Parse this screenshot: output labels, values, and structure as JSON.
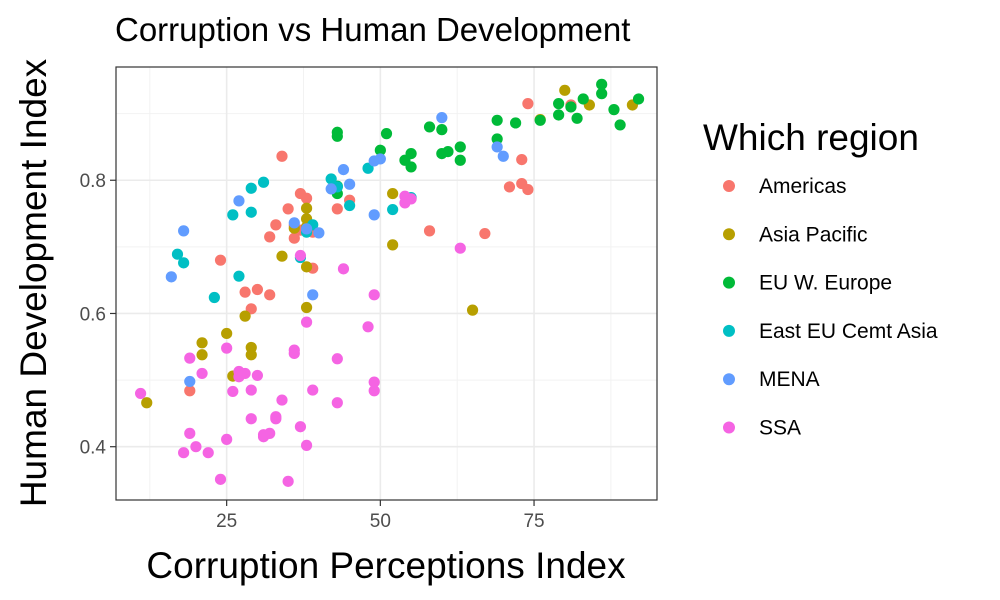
{
  "chart_data": {
    "type": "scatter",
    "title": "Corruption vs Human Development",
    "xlabel": "Corruption Perceptions Index",
    "ylabel": "Human Development Index",
    "xlim": [
      7,
      95
    ],
    "ylim": [
      0.32,
      0.97
    ],
    "x_ticks": [
      25,
      50,
      75
    ],
    "y_ticks": [
      0.4,
      0.6,
      0.8
    ],
    "y_tick_labels": [
      "0.4",
      "0.6",
      "0.8"
    ],
    "grid": true,
    "legend": {
      "title": "Which region",
      "placement": "right"
    },
    "series": [
      {
        "name": "Americas",
        "color": "#F8766D",
        "points": [
          [
            34,
            0.836
          ],
          [
            29,
            0.607
          ],
          [
            30,
            0.636
          ],
          [
            28,
            0.632
          ],
          [
            32,
            0.628
          ],
          [
            32,
            0.715
          ],
          [
            33,
            0.733
          ],
          [
            35,
            0.757
          ],
          [
            36,
            0.713
          ],
          [
            36,
            0.732
          ],
          [
            37,
            0.78
          ],
          [
            38,
            0.773
          ],
          [
            37,
            0.725
          ],
          [
            39,
            0.668
          ],
          [
            39,
            0.722
          ],
          [
            43,
            0.757
          ],
          [
            45,
            0.77
          ],
          [
            24,
            0.68
          ],
          [
            19,
            0.484
          ],
          [
            58,
            0.724
          ],
          [
            67,
            0.72
          ],
          [
            71,
            0.79
          ],
          [
            73,
            0.795
          ],
          [
            74,
            0.786
          ],
          [
            73,
            0.831
          ],
          [
            74,
            0.915
          ],
          [
            81,
            0.913
          ]
        ]
      },
      {
        "name": "Asia Pacific",
        "color": "#B79F00",
        "points": [
          [
            12,
            0.466
          ],
          [
            21,
            0.556
          ],
          [
            21,
            0.538
          ],
          [
            25,
            0.57
          ],
          [
            26,
            0.506
          ],
          [
            28,
            0.596
          ],
          [
            29,
            0.549
          ],
          [
            29,
            0.538
          ],
          [
            34,
            0.686
          ],
          [
            36,
            0.728
          ],
          [
            38,
            0.758
          ],
          [
            38,
            0.742
          ],
          [
            38,
            0.73
          ],
          [
            38,
            0.67
          ],
          [
            38,
            0.609
          ],
          [
            52,
            0.78
          ],
          [
            52,
            0.703
          ],
          [
            65,
            0.605
          ],
          [
            76,
            0.891
          ],
          [
            80,
            0.935
          ],
          [
            84,
            0.913
          ],
          [
            91,
            0.913
          ]
        ]
      },
      {
        "name": "EU W. Europe",
        "color": "#00BA38",
        "points": [
          [
            43,
            0.791
          ],
          [
            43,
            0.78
          ],
          [
            43,
            0.866
          ],
          [
            43,
            0.872
          ],
          [
            50,
            0.845
          ],
          [
            51,
            0.87
          ],
          [
            54,
            0.83
          ],
          [
            55,
            0.82
          ],
          [
            55,
            0.84
          ],
          [
            58,
            0.88
          ],
          [
            60,
            0.876
          ],
          [
            60,
            0.84
          ],
          [
            61,
            0.843
          ],
          [
            63,
            0.85
          ],
          [
            63,
            0.83
          ],
          [
            69,
            0.89
          ],
          [
            69,
            0.862
          ],
          [
            72,
            0.886
          ],
          [
            76,
            0.89
          ],
          [
            79,
            0.915
          ],
          [
            79,
            0.898
          ],
          [
            81,
            0.91
          ],
          [
            82,
            0.893
          ],
          [
            83,
            0.922
          ],
          [
            86,
            0.944
          ],
          [
            86,
            0.93
          ],
          [
            88,
            0.906
          ],
          [
            89,
            0.883
          ],
          [
            92,
            0.922
          ]
        ]
      },
      {
        "name": "East EU Cemt Asia",
        "color": "#00BFC4",
        "points": [
          [
            17,
            0.689
          ],
          [
            18,
            0.676
          ],
          [
            23,
            0.624
          ],
          [
            26,
            0.748
          ],
          [
            27,
            0.656
          ],
          [
            29,
            0.752
          ],
          [
            29,
            0.788
          ],
          [
            31,
            0.797
          ],
          [
            37,
            0.684
          ],
          [
            38,
            0.722
          ],
          [
            39,
            0.733
          ],
          [
            42,
            0.802
          ],
          [
            43,
            0.79
          ],
          [
            45,
            0.762
          ],
          [
            48,
            0.818
          ],
          [
            52,
            0.756
          ],
          [
            55,
            0.774
          ]
        ]
      },
      {
        "name": "MENA",
        "color": "#619CFF",
        "points": [
          [
            16,
            0.655
          ],
          [
            18,
            0.724
          ],
          [
            19,
            0.498
          ],
          [
            27,
            0.769
          ],
          [
            36,
            0.736
          ],
          [
            38,
            0.727
          ],
          [
            39,
            0.628
          ],
          [
            40,
            0.721
          ],
          [
            42,
            0.787
          ],
          [
            44,
            0.816
          ],
          [
            45,
            0.794
          ],
          [
            49,
            0.748
          ],
          [
            49,
            0.829
          ],
          [
            50,
            0.832
          ],
          [
            60,
            0.894
          ],
          [
            69,
            0.85
          ],
          [
            70,
            0.836
          ]
        ]
      },
      {
        "name": "SSA",
        "color": "#F564E3",
        "points": [
          [
            11,
            0.48
          ],
          [
            18,
            0.391
          ],
          [
            19,
            0.42
          ],
          [
            19,
            0.533
          ],
          [
            20,
            0.4
          ],
          [
            21,
            0.51
          ],
          [
            22,
            0.391
          ],
          [
            24,
            0.351
          ],
          [
            25,
            0.411
          ],
          [
            25,
            0.548
          ],
          [
            26,
            0.483
          ],
          [
            27,
            0.505
          ],
          [
            27,
            0.513
          ],
          [
            28,
            0.51
          ],
          [
            29,
            0.442
          ],
          [
            29,
            0.485
          ],
          [
            30,
            0.507
          ],
          [
            31,
            0.415
          ],
          [
            31,
            0.418
          ],
          [
            32,
            0.42
          ],
          [
            33,
            0.442
          ],
          [
            33,
            0.445
          ],
          [
            34,
            0.47
          ],
          [
            35,
            0.348
          ],
          [
            36,
            0.54
          ],
          [
            36,
            0.545
          ],
          [
            37,
            0.43
          ],
          [
            37,
            0.687
          ],
          [
            38,
            0.587
          ],
          [
            38,
            0.402
          ],
          [
            39,
            0.485
          ],
          [
            43,
            0.466
          ],
          [
            43,
            0.532
          ],
          [
            44,
            0.667
          ],
          [
            48,
            0.58
          ],
          [
            49,
            0.484
          ],
          [
            49,
            0.497
          ],
          [
            49,
            0.628
          ],
          [
            54,
            0.776
          ],
          [
            54,
            0.766
          ],
          [
            55,
            0.772
          ],
          [
            63,
            0.698
          ]
        ]
      }
    ]
  }
}
